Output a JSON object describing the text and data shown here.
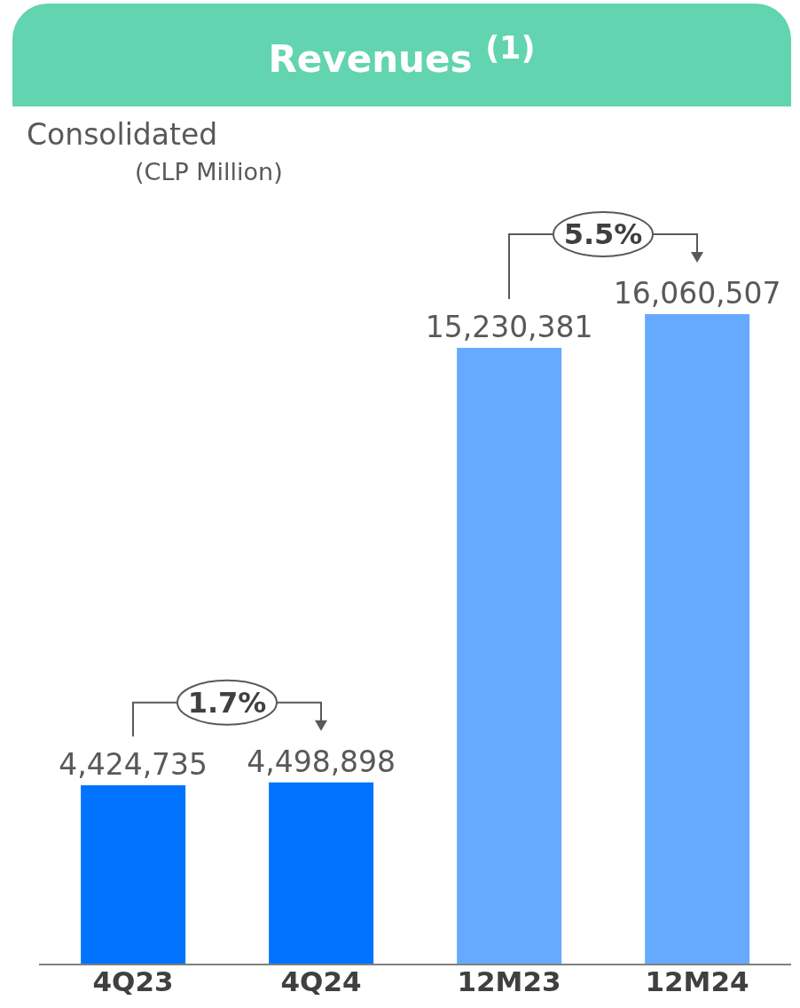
{
  "chart_data": {
    "type": "bar",
    "title": "Revenues $^{(1)}$",
    "subtitle": "Consolidated\n(CLP Million)",
    "categories": [
      "4Q23",
      "4Q24",
      "12M23",
      "12M24"
    ],
    "values": [
      4424735,
      4498898,
      15230381,
      16060507
    ],
    "value_labels": [
      "4,424,735",
      "4,498,898",
      "15,230,381",
      "16,060,507"
    ],
    "colors": [
      "#0073ff",
      "#0073ff",
      "#66aaff",
      "#66aaff"
    ],
    "grid": false,
    "legend": false,
    "annotations": [
      "1.7%",
      "5.5%"
    ]
  }
}
